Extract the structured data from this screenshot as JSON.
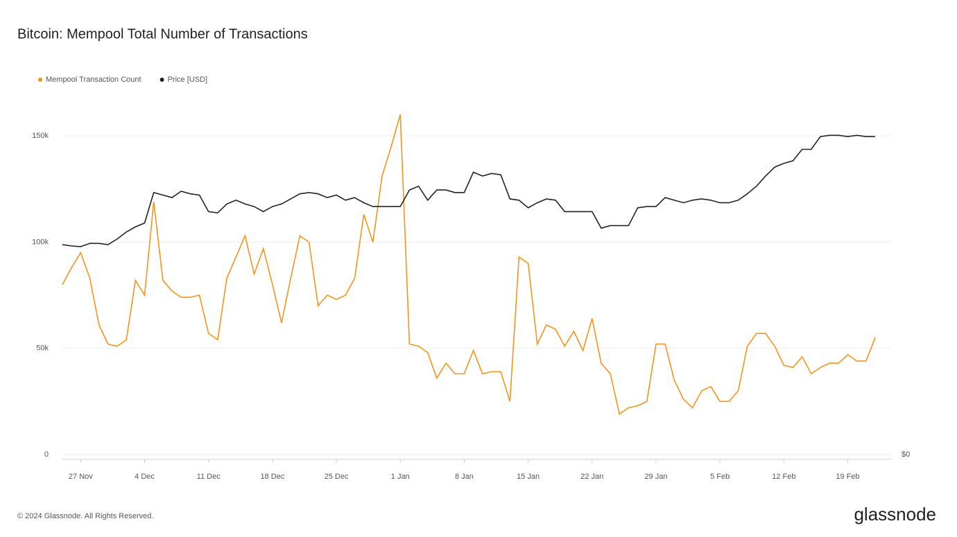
{
  "chart_data": {
    "type": "line",
    "title": "Bitcoin: Mempool Total Number of Transactions",
    "copyright": "© 2024 Glassnode. All Rights Reserved.",
    "brand": "glassnode",
    "x": [
      "25 Nov",
      "26 Nov",
      "27 Nov",
      "28 Nov",
      "29 Nov",
      "30 Nov",
      "1 Dec",
      "2 Dec",
      "3 Dec",
      "4 Dec",
      "5 Dec",
      "6 Dec",
      "7 Dec",
      "8 Dec",
      "9 Dec",
      "10 Dec",
      "11 Dec",
      "12 Dec",
      "13 Dec",
      "14 Dec",
      "15 Dec",
      "16 Dec",
      "17 Dec",
      "18 Dec",
      "19 Dec",
      "20 Dec",
      "21 Dec",
      "22 Dec",
      "23 Dec",
      "24 Dec",
      "25 Dec",
      "26 Dec",
      "27 Dec",
      "28 Dec",
      "29 Dec",
      "30 Dec",
      "31 Dec",
      "1 Jan",
      "2 Jan",
      "3 Jan",
      "4 Jan",
      "5 Jan",
      "6 Jan",
      "7 Jan",
      "8 Jan",
      "9 Jan",
      "10 Jan",
      "11 Jan",
      "12 Jan",
      "13 Jan",
      "14 Jan",
      "15 Jan",
      "16 Jan",
      "17 Jan",
      "18 Jan",
      "19 Jan",
      "20 Jan",
      "21 Jan",
      "22 Jan",
      "23 Jan",
      "24 Jan",
      "25 Jan",
      "26 Jan",
      "27 Jan",
      "28 Jan",
      "29 Jan",
      "30 Jan",
      "31 Jan",
      "1 Feb",
      "2 Feb",
      "3 Feb",
      "4 Feb",
      "5 Feb",
      "6 Feb",
      "7 Feb",
      "8 Feb",
      "9 Feb",
      "10 Feb",
      "11 Feb",
      "12 Feb",
      "13 Feb",
      "14 Feb",
      "15 Feb",
      "16 Feb",
      "17 Feb",
      "18 Feb",
      "19 Feb",
      "20 Feb",
      "21 Feb",
      "22 Feb"
    ],
    "series": [
      {
        "name": "Mempool Transaction Count",
        "color": "#f7931a",
        "axis": "y",
        "values": [
          80000,
          88000,
          95000,
          83000,
          61000,
          52000,
          51000,
          54000,
          82000,
          75000,
          119000,
          82000,
          77000,
          74000,
          74000,
          75000,
          57000,
          54000,
          83000,
          93000,
          103000,
          85000,
          97000,
          80000,
          62000,
          83000,
          103000,
          100000,
          70000,
          75000,
          73000,
          75000,
          83000,
          113000,
          100000,
          131000,
          145000,
          160000,
          52000,
          51000,
          48000,
          36000,
          43000,
          38000,
          38000,
          49000,
          38000,
          39000,
          39000,
          25000,
          93000,
          90000,
          52000,
          61000,
          59000,
          51000,
          58000,
          49000,
          64000,
          43000,
          38000,
          19000,
          22000,
          23000,
          25000,
          52000,
          52000,
          35000,
          26000,
          22000,
          30000,
          32000,
          25000,
          25000,
          30000,
          51000,
          57000,
          57000,
          51000,
          42000,
          41000,
          46000,
          38000,
          41000,
          43000,
          43000,
          47000,
          44000,
          44000,
          55000
        ]
      },
      {
        "name": "Price [USD]",
        "color": "#222222",
        "axis": "y2",
        "values": [
          16500,
          16400,
          16350,
          16600,
          16600,
          16500,
          16950,
          17500,
          17900,
          18200,
          20600,
          20400,
          20200,
          20700,
          20500,
          20400,
          19100,
          19000,
          19700,
          20000,
          19700,
          19500,
          19100,
          19500,
          19700,
          20100,
          20500,
          20600,
          20500,
          20200,
          20400,
          20000,
          20200,
          19800,
          19500,
          19500,
          19500,
          19500,
          20800,
          21100,
          20000,
          20800,
          20800,
          20600,
          20600,
          22200,
          21900,
          22100,
          22000,
          20100,
          20000,
          19400,
          19800,
          20100,
          20000,
          19100,
          19100,
          19100,
          19100,
          17800,
          18000,
          18000,
          18000,
          19400,
          19500,
          19500,
          20200,
          20000,
          19800,
          20000,
          20100,
          20000,
          19800,
          19800,
          20000,
          20500,
          21100,
          21900,
          22600,
          22900,
          23100,
          24000,
          24000,
          25000,
          25100,
          25100,
          25000,
          25100,
          25000,
          25000
        ]
      }
    ],
    "xticks": [
      "27 Nov",
      "4 Dec",
      "11 Dec",
      "18 Dec",
      "25 Dec",
      "1 Jan",
      "8 Jan",
      "15 Jan",
      "22 Jan",
      "29 Jan",
      "5 Feb",
      "12 Feb",
      "19 Feb"
    ],
    "ylim": [
      0,
      170000
    ],
    "yticks": [
      {
        "value": 0,
        "label": "0"
      },
      {
        "value": 50000,
        "label": "50k"
      },
      {
        "value": 100000,
        "label": "100k"
      },
      {
        "value": 150000,
        "label": "150k"
      }
    ],
    "y2lim": [
      0,
      28400
    ],
    "y2ticks": [
      {
        "value": 0,
        "label": "$0"
      }
    ],
    "grid": true,
    "legend": "top-left"
  }
}
